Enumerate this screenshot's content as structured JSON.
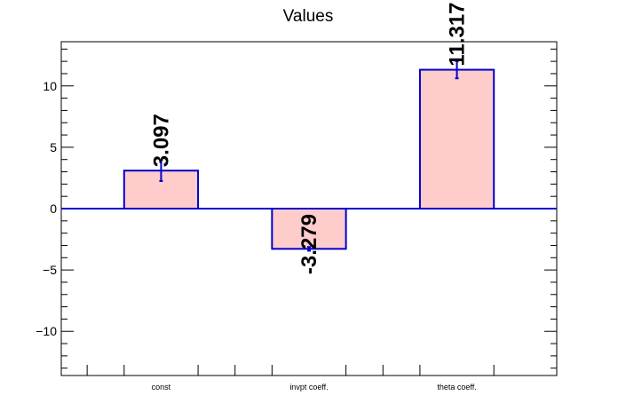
{
  "chart_data": {
    "type": "bar",
    "title": "Values",
    "categories": [
      "const",
      "invpt coeff.",
      "theta coeff."
    ],
    "values": [
      3.097,
      -3.279,
      11.317
    ],
    "errors": [
      0.85,
      0.15,
      0.7
    ],
    "value_labels": [
      "3.097",
      "-3.279",
      "11.317"
    ],
    "ylim": [
      -13.6,
      13.6
    ],
    "yticks": [
      -10,
      -5,
      0,
      5,
      10
    ],
    "ytick_labels": [
      "−10",
      "−5",
      "0",
      "5",
      "10"
    ],
    "grid": false,
    "bar_fill": "#ffcccc",
    "bar_edge": "#0000cc"
  }
}
